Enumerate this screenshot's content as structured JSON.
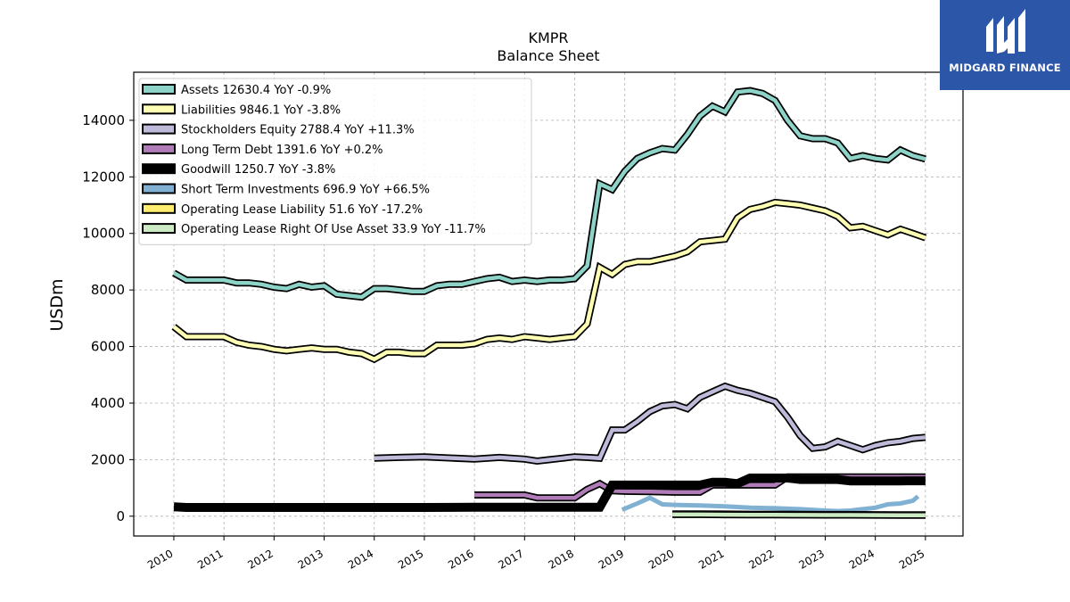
{
  "brand": {
    "name": "MIDGARD FINANCE",
    "bg_color": "#2c56a8"
  },
  "chart_data": {
    "type": "line",
    "title": "KMPR",
    "subtitle": "Balance  Sheet",
    "xlabel": "",
    "ylabel": "USDm",
    "xlim": [
      2009.2,
      2025.75
    ],
    "ylim": [
      -700,
      15700
    ],
    "yticks": [
      0,
      2000,
      4000,
      6000,
      8000,
      10000,
      12000,
      14000
    ],
    "xticks": [
      2010,
      2011,
      2012,
      2013,
      2014,
      2015,
      2016,
      2017,
      2018,
      2019,
      2020,
      2021,
      2022,
      2023,
      2024,
      2025
    ],
    "grid": true,
    "legend_position": "top-left",
    "series": [
      {
        "name": "Assets  12630.4 YoY -0.9%",
        "color": "#8dd3c7",
        "x": [
          2010.0,
          2010.25,
          2010.5,
          2010.75,
          2011.0,
          2011.25,
          2011.5,
          2011.75,
          2012.0,
          2012.25,
          2012.5,
          2012.75,
          2013.0,
          2013.25,
          2013.5,
          2013.75,
          2014.0,
          2014.25,
          2014.5,
          2014.75,
          2015.0,
          2015.25,
          2015.5,
          2015.75,
          2016.0,
          2016.25,
          2016.5,
          2016.75,
          2017.0,
          2017.25,
          2017.5,
          2017.75,
          2018.0,
          2018.25,
          2018.5,
          2018.75,
          2019.0,
          2019.25,
          2019.5,
          2019.75,
          2020.0,
          2020.25,
          2020.5,
          2020.75,
          2021.0,
          2021.25,
          2021.5,
          2021.75,
          2022.0,
          2022.25,
          2022.5,
          2022.75,
          2023.0,
          2023.25,
          2023.5,
          2023.75,
          2024.0,
          2024.25,
          2024.5,
          2024.75,
          2025.0
        ],
        "values": [
          8600,
          8350,
          8350,
          8350,
          8350,
          8250,
          8250,
          8200,
          8100,
          8050,
          8200,
          8100,
          8150,
          7850,
          7800,
          7750,
          8050,
          8050,
          8000,
          7950,
          7950,
          8150,
          8200,
          8200,
          8300,
          8400,
          8450,
          8300,
          8350,
          8300,
          8350,
          8350,
          8400,
          8850,
          11750,
          11550,
          12200,
          12650,
          12850,
          13000,
          12950,
          13500,
          14150,
          14500,
          14300,
          15000,
          15050,
          14950,
          14700,
          14000,
          13450,
          13350,
          13350,
          13200,
          12650,
          12750,
          12650,
          12600,
          12950,
          12750,
          12630
        ]
      },
      {
        "name": "Liabilities  9846.1 YoY -3.8%",
        "color": "#ffffb3",
        "x": [
          2010.0,
          2010.25,
          2010.5,
          2010.75,
          2011.0,
          2011.25,
          2011.5,
          2011.75,
          2012.0,
          2012.25,
          2012.5,
          2012.75,
          2013.0,
          2013.25,
          2013.5,
          2013.75,
          2014.0,
          2014.25,
          2014.5,
          2014.75,
          2015.0,
          2015.25,
          2015.5,
          2015.75,
          2016.0,
          2016.25,
          2016.5,
          2016.75,
          2017.0,
          2017.25,
          2017.5,
          2017.75,
          2018.0,
          2018.25,
          2018.5,
          2018.75,
          2019.0,
          2019.25,
          2019.5,
          2019.75,
          2020.0,
          2020.25,
          2020.5,
          2020.75,
          2021.0,
          2021.25,
          2021.5,
          2021.75,
          2022.0,
          2022.25,
          2022.5,
          2022.75,
          2023.0,
          2023.25,
          2023.5,
          2023.75,
          2024.0,
          2024.25,
          2024.5,
          2024.75,
          2025.0
        ],
        "values": [
          6700,
          6350,
          6350,
          6350,
          6350,
          6150,
          6050,
          6000,
          5900,
          5850,
          5900,
          5950,
          5900,
          5900,
          5800,
          5750,
          5550,
          5800,
          5800,
          5750,
          5750,
          6050,
          6050,
          6050,
          6100,
          6250,
          6300,
          6250,
          6350,
          6300,
          6250,
          6300,
          6350,
          6800,
          8800,
          8550,
          8900,
          9000,
          9000,
          9100,
          9200,
          9350,
          9700,
          9750,
          9800,
          10550,
          10850,
          10950,
          11100,
          11050,
          11000,
          10900,
          10800,
          10600,
          10200,
          10250,
          10100,
          9950,
          10150,
          10000,
          9846
        ]
      },
      {
        "name": "Stockholders Equity  2788.4 YoY +11.3%",
        "color": "#bebada",
        "x": [
          2014.0,
          2014.5,
          2015.0,
          2015.5,
          2016.0,
          2016.5,
          2017.0,
          2017.25,
          2017.5,
          2017.75,
          2018.0,
          2018.25,
          2018.5,
          2018.75,
          2019.0,
          2019.25,
          2019.5,
          2019.75,
          2020.0,
          2020.25,
          2020.5,
          2020.75,
          2021.0,
          2021.25,
          2021.5,
          2021.75,
          2022.0,
          2022.25,
          2022.5,
          2022.75,
          2023.0,
          2023.25,
          2023.5,
          2023.75,
          2024.0,
          2024.25,
          2024.5,
          2024.75,
          2025.0
        ],
        "values": [
          2050,
          2080,
          2100,
          2060,
          2020,
          2080,
          2020,
          1950,
          2000,
          2050,
          2100,
          2080,
          2050,
          3050,
          3050,
          3350,
          3700,
          3900,
          3950,
          3800,
          4200,
          4400,
          4600,
          4450,
          4350,
          4200,
          4050,
          3500,
          2850,
          2400,
          2450,
          2650,
          2500,
          2350,
          2500,
          2600,
          2650,
          2750,
          2788
        ]
      },
      {
        "name": "Long Term Debt  1391.6 YoY +0.2%",
        "color": "#b07cb8",
        "x": [
          2016.0,
          2016.5,
          2017.0,
          2017.25,
          2017.5,
          2018.0,
          2018.25,
          2018.5,
          2018.75,
          2019.0,
          2019.5,
          2020.0,
          2020.5,
          2020.75,
          2021.0,
          2021.5,
          2022.0,
          2022.25,
          2022.5,
          2023.0,
          2023.5,
          2024.0,
          2024.5,
          2025.0
        ],
        "values": [
          750,
          750,
          750,
          650,
          650,
          650,
          950,
          1150,
          900,
          880,
          870,
          850,
          850,
          1100,
          1100,
          1100,
          1100,
          1390,
          1390,
          1390,
          1390,
          1390,
          1390,
          1391.6
        ]
      },
      {
        "name": "Goodwill  1250.7 YoY -3.8%",
        "color": "#000000",
        "x": [
          2010.0,
          2010.25,
          2011.0,
          2012.0,
          2013.0,
          2014.0,
          2015.0,
          2016.0,
          2017.0,
          2018.0,
          2018.25,
          2018.5,
          2018.75,
          2019.0,
          2019.5,
          2020.0,
          2020.5,
          2020.75,
          2021.0,
          2021.25,
          2021.5,
          2022.0,
          2022.25,
          2022.5,
          2023.0,
          2023.25,
          2023.5,
          2024.0,
          2024.5,
          2025.0
        ],
        "values": [
          330,
          310,
          310,
          310,
          310,
          310,
          310,
          320,
          320,
          320,
          320,
          320,
          1100,
          1100,
          1100,
          1100,
          1100,
          1200,
          1200,
          1150,
          1350,
          1350,
          1350,
          1300,
          1300,
          1300,
          1250,
          1250,
          1250,
          1250.7
        ]
      },
      {
        "name": "Short Term Investments  696.9 YoY +66.5%",
        "color": "#80b1d3",
        "x": [
          2018.95,
          2019.25,
          2019.5,
          2019.75,
          2020.0,
          2020.5,
          2021.0,
          2021.5,
          2022.0,
          2022.5,
          2023.0,
          2023.25,
          2023.5,
          2023.75,
          2024.0,
          2024.25,
          2024.5,
          2024.75,
          2024.85
        ],
        "values": [
          230,
          450,
          650,
          420,
          400,
          380,
          350,
          300,
          280,
          250,
          200,
          180,
          200,
          250,
          300,
          420,
          450,
          550,
          700
        ]
      },
      {
        "name": "Operating Lease Liability  51.6 YoY -17.2%",
        "color": "#ffed6f",
        "x": [
          2019.95,
          2020.5,
          2021.0,
          2021.5,
          2022.0,
          2022.5,
          2023.0,
          2023.5,
          2024.0,
          2024.5,
          2025.0
        ],
        "values": [
          80,
          80,
          75,
          70,
          70,
          65,
          60,
          60,
          55,
          52,
          51.6
        ]
      },
      {
        "name": "Operating Lease Right Of Use Asset  33.9 YoY -11.7%",
        "color": "#ccebc5",
        "x": [
          2019.95,
          2020.5,
          2021.0,
          2021.5,
          2022.0,
          2022.5,
          2023.0,
          2023.5,
          2024.0,
          2024.5,
          2025.0
        ],
        "values": [
          60,
          60,
          55,
          50,
          50,
          45,
          40,
          40,
          38,
          35,
          33.9
        ]
      }
    ]
  }
}
